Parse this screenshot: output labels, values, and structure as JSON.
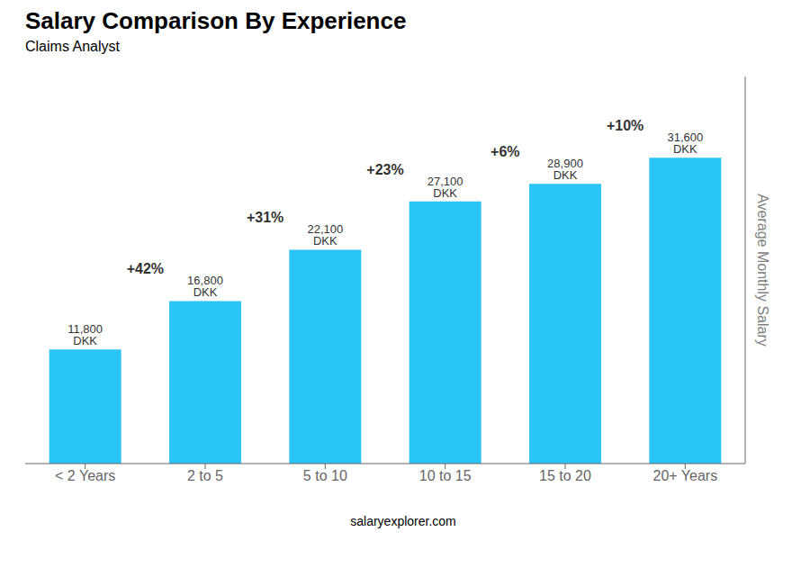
{
  "chart_data": {
    "type": "bar",
    "title": "Salary Comparison By Experience",
    "subtitle": "Claims Analyst",
    "ylabel": "Average Monthly Salary",
    "footer": "salaryexplorer.com",
    "categories": [
      "< 2 Years",
      "2 to 5",
      "5 to 10",
      "10 to 15",
      "15 to 20",
      "20+ Years"
    ],
    "values": [
      11800,
      16800,
      22100,
      27100,
      28900,
      31600
    ],
    "value_labels": [
      "11,800 DKK",
      "16,800 DKK",
      "22,100 DKK",
      "27,100 DKK",
      "28,900 DKK",
      "31,600 DKK"
    ],
    "annotations": [
      "+42%",
      "+31%",
      "+23%",
      "+6%",
      "+10%"
    ],
    "color": "#29C5F6",
    "ylim": [
      0,
      40000
    ],
    "data_labels": true,
    "tick_labels": "x",
    "grid": false
  }
}
